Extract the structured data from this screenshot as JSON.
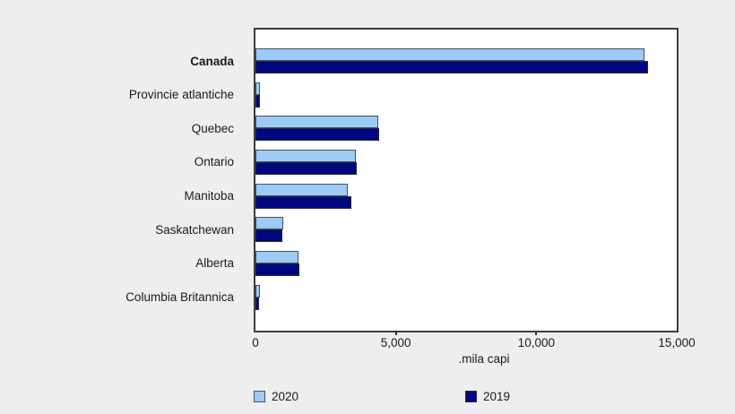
{
  "chart_data": {
    "type": "bar",
    "orientation": "horizontal",
    "categories": [
      "Canada",
      "Provincie atlantiche",
      "Quebec",
      "Ontario",
      "Manitoba",
      "Saskatchewan",
      "Alberta",
      "Columbia Britannica"
    ],
    "bold_category": "Canada",
    "series": [
      {
        "name": "2020",
        "color": "#9ccbf8",
        "values": [
          13840,
          150,
          4365,
          3590,
          3300,
          980,
          1520,
          145
        ]
      },
      {
        "name": "2019",
        "color": "#010780",
        "values": [
          13965,
          145,
          4420,
          3615,
          3405,
          945,
          1570,
          140
        ]
      }
    ],
    "xlabel": ".mila capi",
    "xlim": [
      0,
      15000
    ],
    "xticks": [
      0,
      5000,
      10000,
      15000
    ],
    "xtick_labels": [
      "0",
      "5,000",
      "10,000",
      "15,000"
    ],
    "grid": false,
    "legend_position": "bottom",
    "plot_background": "#ffffff",
    "page_background": "#eeeeee",
    "bar_border_color": "#44505b"
  }
}
